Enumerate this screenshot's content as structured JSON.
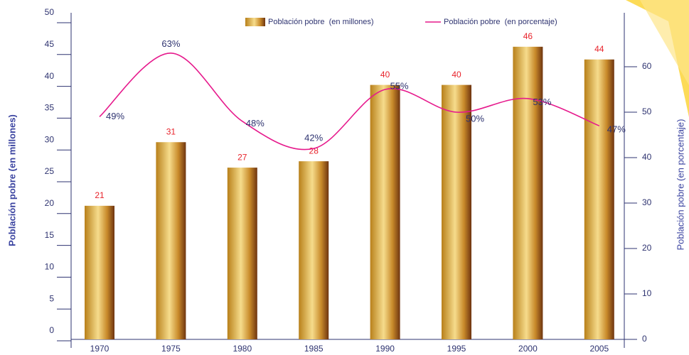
{
  "chart_data": {
    "type": "bar",
    "y_label": "Población pobre (en millones)",
    "y2_label": "Población pobre (en porcentaje)",
    "categories": [
      "1970",
      "1975",
      "1980",
      "1985",
      "1990",
      "1995",
      "2000",
      "2005"
    ],
    "series": [
      {
        "name": "Población pobre  (en millones)",
        "type": "bar",
        "color": "#c8901e",
        "label_color": "#e8232b",
        "values": [
          21,
          31,
          27,
          28,
          40,
          40,
          46,
          44
        ]
      },
      {
        "name": "Población pobre  (en porcentaje)",
        "type": "line",
        "axis": "y2",
        "color": "#e6198c",
        "label_color": "#2e3370",
        "values": [
          49,
          63,
          48,
          42,
          55,
          50,
          53,
          47
        ],
        "value_labels": [
          "49%",
          "63%",
          "48%",
          "42%",
          "55%",
          "50%",
          "53%",
          "47%"
        ]
      }
    ],
    "ylim": [
      0,
      50
    ],
    "yticks": [
      0,
      5,
      10,
      15,
      20,
      25,
      30,
      35,
      40,
      45,
      50
    ],
    "y2lim": [
      0,
      70
    ],
    "y2ticks": [
      0,
      10,
      20,
      30,
      40,
      50,
      60
    ]
  }
}
